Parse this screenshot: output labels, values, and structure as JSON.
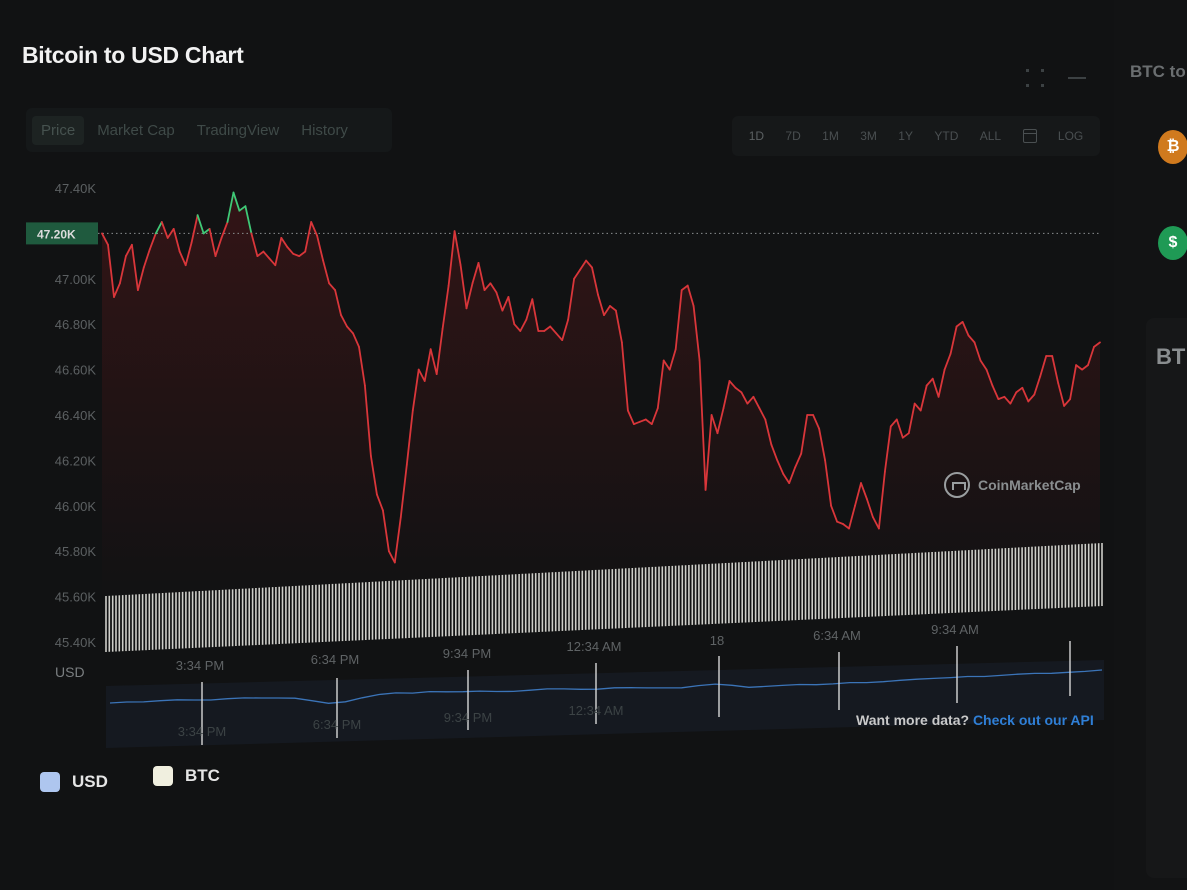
{
  "title": "Bitcoin to USD Chart",
  "tabs": [
    {
      "label": "Price",
      "active": true
    },
    {
      "label": "Market Cap",
      "active": false
    },
    {
      "label": "TradingView",
      "active": false
    },
    {
      "label": "History",
      "active": false
    }
  ],
  "ranges": [
    "1D",
    "7D",
    "1M",
    "3M",
    "1Y",
    "YTD",
    "ALL"
  ],
  "ranges_active": "1D",
  "log_label": "LOG",
  "side": {
    "title": "BTC to",
    "coin_btc_symbol": "₿",
    "coin_usd_symbol": "$",
    "card_title": "BT"
  },
  "watermark": "CoinMarketCap",
  "more_data": {
    "text": "Want more data?",
    "link": "Check out our API"
  },
  "legend": [
    {
      "label": "USD",
      "color": "#aec6ef"
    },
    {
      "label": "BTC",
      "color": "#f0efdf"
    }
  ],
  "colors": {
    "down_line": "#d9363a",
    "up_line": "#3fc977",
    "navigator_line": "#3b74b8",
    "volume_bar": "#e3e3dd",
    "reference_line": "#8a8e90",
    "current_badge": "#1f5a3e"
  },
  "chart_data": {
    "type": "line",
    "title": "Bitcoin to USD Chart",
    "xlabel": "",
    "ylabel": "",
    "unit_label": "USD",
    "ylim": [
      45400,
      47400
    ],
    "y_ticks": [
      "47.40K",
      "47.20K",
      "47.00K",
      "46.80K",
      "46.60K",
      "46.40K",
      "46.20K",
      "46.00K",
      "45.80K",
      "45.60K",
      "45.40K"
    ],
    "y_tick_values": [
      47400,
      47200,
      47000,
      46800,
      46600,
      46400,
      46200,
      46000,
      45800,
      45600,
      45400
    ],
    "reference_value": 47200,
    "reference_label": "47.20K",
    "x_ticks": [
      "3:34 PM",
      "6:34 PM",
      "9:34 PM",
      "12:34 AM",
      "18",
      "6:34 AM",
      "9:34 AM"
    ],
    "navigator_ticks": [
      "3:34 PM",
      "6:34 PM",
      "9:34 PM",
      "12:34 AM"
    ],
    "grid": false,
    "legend_position": "bottom-left",
    "series": [
      {
        "name": "BTC",
        "values": [
          47200,
          47150,
          46920,
          46980,
          47100,
          47150,
          46950,
          47050,
          47130,
          47200,
          47250,
          47180,
          47220,
          47120,
          47060,
          47160,
          47280,
          47200,
          47220,
          47100,
          47180,
          47250,
          47380,
          47300,
          47320,
          47200,
          47100,
          47120,
          47090,
          47060,
          47180,
          47140,
          47110,
          47100,
          47120,
          47250,
          47190,
          47080,
          46980,
          46950,
          46840,
          46790,
          46760,
          46700,
          46530,
          46220,
          46050,
          45980,
          45800,
          45750,
          45950,
          46180,
          46420,
          46600,
          46550,
          46690,
          46580,
          46780,
          46970,
          47210,
          47060,
          46870,
          46980,
          47070,
          46950,
          46980,
          46940,
          46860,
          46920,
          46800,
          46770,
          46820,
          46910,
          46770,
          46770,
          46790,
          46760,
          46730,
          46820,
          47000,
          47040,
          47080,
          47050,
          46930,
          46840,
          46880,
          46860,
          46720,
          46420,
          46360,
          46370,
          46380,
          46360,
          46430,
          46640,
          46600,
          46690,
          46950,
          46970,
          46880,
          46640,
          46070,
          46400,
          46320,
          46430,
          46550,
          46520,
          46500,
          46450,
          46480,
          46430,
          46380,
          46270,
          46200,
          46140,
          46100,
          46170,
          46230,
          46400,
          46400,
          46340,
          46200,
          46000,
          45930,
          45920,
          45900,
          46000,
          46100,
          46030,
          45950,
          45900,
          46150,
          46350,
          46380,
          46300,
          46320,
          46450,
          46420,
          46530,
          46560,
          46480,
          46600,
          46670,
          46790,
          46810,
          46750,
          46720,
          46640,
          46600,
          46530,
          46470,
          46480,
          46450,
          46500,
          46520,
          46460,
          46490,
          46570,
          46660,
          46660,
          46540,
          46440,
          46470,
          46620,
          46600,
          46620,
          46700,
          46720
        ]
      }
    ],
    "volume_bars": 300,
    "navigator_series": {
      "name": "USD",
      "values": [
        0.45,
        0.48,
        0.46,
        0.5,
        0.52,
        0.49,
        0.47,
        0.51,
        0.53,
        0.5,
        0.48,
        0.45,
        0.3,
        0.15,
        0.2,
        0.38,
        0.52,
        0.58,
        0.55,
        0.6,
        0.57,
        0.55,
        0.56,
        0.52,
        0.5,
        0.54,
        0.58,
        0.56,
        0.52,
        0.5,
        0.55,
        0.53,
        0.5,
        0.48,
        0.46,
        0.55,
        0.6,
        0.52,
        0.4,
        0.42,
        0.45,
        0.47,
        0.44,
        0.46,
        0.5,
        0.48,
        0.5,
        0.55,
        0.58,
        0.6,
        0.62,
        0.65,
        0.63,
        0.66,
        0.7,
        0.72,
        0.7,
        0.73,
        0.75,
        0.8
      ]
    }
  }
}
